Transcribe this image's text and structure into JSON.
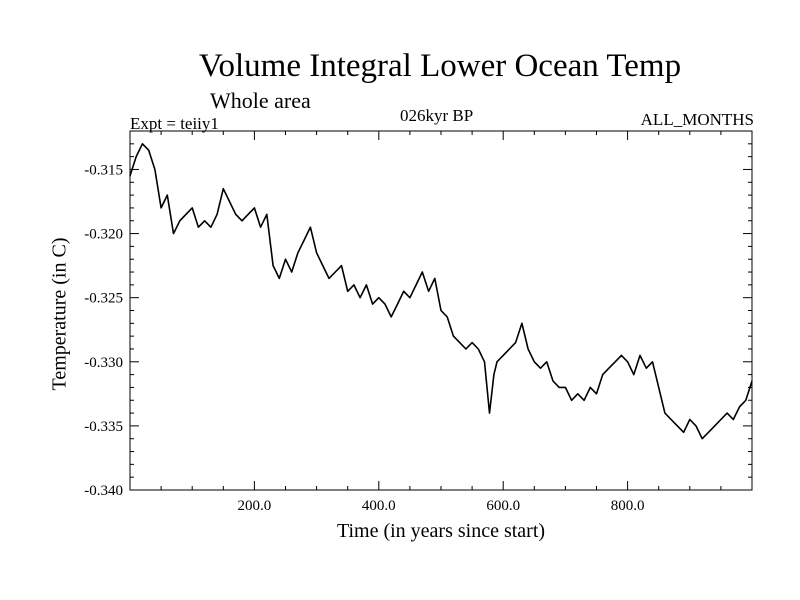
{
  "chart_data": {
    "type": "line",
    "title": "Volume Integral Lower Ocean Temp",
    "subtitle": "Whole area",
    "experiment_label": "Expt = teiiy1",
    "period_label": "026kyr BP",
    "months_label": "ALL_MONTHS",
    "xlabel": "Time (in years since start)",
    "ylabel": "Temperature (in C)",
    "xlim": [
      0,
      1000
    ],
    "ylim": [
      -0.34,
      -0.312
    ],
    "x_ticks": [
      200,
      400,
      600,
      800
    ],
    "x_tick_labels": [
      "200.0",
      "400.0",
      "600.0",
      "800.0"
    ],
    "y_ticks": [
      -0.34,
      -0.335,
      -0.33,
      -0.325,
      -0.32,
      -0.315
    ],
    "y_tick_labels": [
      "-0.340",
      "-0.335",
      "-0.330",
      "-0.325",
      "-0.320",
      "-0.315"
    ],
    "grid": false,
    "line_color": "#000000",
    "series": [
      {
        "x": [
          0,
          10,
          20,
          30,
          40,
          50,
          60,
          70,
          80,
          90,
          100,
          110,
          120,
          130,
          140,
          150,
          160,
          170,
          180,
          190,
          200,
          210,
          220,
          230,
          240,
          250,
          260,
          270,
          280,
          290,
          300,
          310,
          320,
          330,
          340,
          350,
          360,
          370,
          380,
          390,
          400,
          410,
          420,
          430,
          440,
          450,
          460,
          470,
          480,
          490,
          500,
          510,
          520,
          530,
          540,
          550,
          560,
          570,
          578,
          585,
          590,
          600,
          610,
          620,
          630,
          640,
          650,
          660,
          670,
          680,
          690,
          700,
          710,
          720,
          730,
          740,
          750,
          760,
          770,
          780,
          790,
          800,
          810,
          820,
          830,
          840,
          850,
          860,
          870,
          880,
          890,
          900,
          910,
          920,
          930,
          940,
          950,
          960,
          970,
          980,
          990,
          1000
        ],
        "y": [
          -0.3155,
          -0.314,
          -0.313,
          -0.3135,
          -0.315,
          -0.318,
          -0.317,
          -0.32,
          -0.319,
          -0.3185,
          -0.318,
          -0.3195,
          -0.319,
          -0.3195,
          -0.3185,
          -0.3165,
          -0.3175,
          -0.3185,
          -0.319,
          -0.3185,
          -0.318,
          -0.3195,
          -0.3185,
          -0.3225,
          -0.3235,
          -0.322,
          -0.323,
          -0.3215,
          -0.3205,
          -0.3195,
          -0.3215,
          -0.3225,
          -0.3235,
          -0.323,
          -0.3225,
          -0.3245,
          -0.324,
          -0.325,
          -0.324,
          -0.3255,
          -0.325,
          -0.3255,
          -0.3265,
          -0.3255,
          -0.3245,
          -0.325,
          -0.324,
          -0.323,
          -0.3245,
          -0.3235,
          -0.326,
          -0.3265,
          -0.328,
          -0.3285,
          -0.329,
          -0.3285,
          -0.329,
          -0.33,
          -0.334,
          -0.331,
          -0.33,
          -0.3295,
          -0.329,
          -0.3285,
          -0.327,
          -0.329,
          -0.33,
          -0.3305,
          -0.33,
          -0.3315,
          -0.332,
          -0.332,
          -0.333,
          -0.3325,
          -0.333,
          -0.332,
          -0.3325,
          -0.331,
          -0.3305,
          -0.33,
          -0.3295,
          -0.33,
          -0.331,
          -0.3295,
          -0.3305,
          -0.33,
          -0.332,
          -0.334,
          -0.3345,
          -0.335,
          -0.3355,
          -0.3345,
          -0.335,
          -0.336,
          -0.3355,
          -0.335,
          -0.3345,
          -0.334,
          -0.3345,
          -0.3335,
          -0.333,
          -0.3315
        ]
      }
    ]
  }
}
